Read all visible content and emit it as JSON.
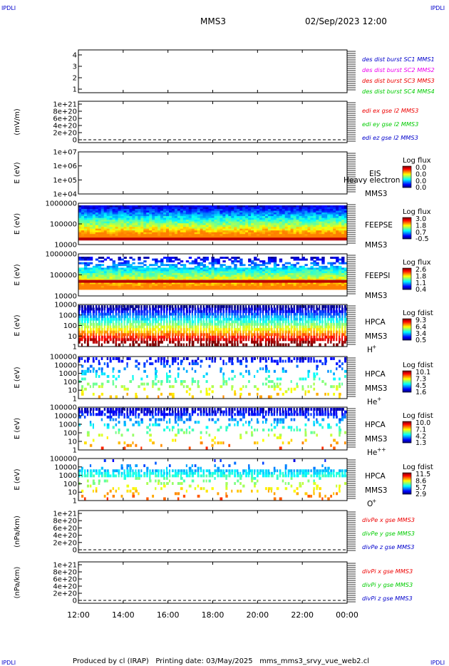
{
  "corner_label": "IPDLI",
  "header": {
    "title": "MMS3",
    "datetime": "02/Sep/2023 12:00"
  },
  "footer": {
    "text": "Produced by cl (IRAP)   Printing date: 03/May/2025   mms_mms3_srvy_vue_web2.cl"
  },
  "colors": {
    "red": "#ee0000",
    "green": "#00cc00",
    "blue": "#0000cc",
    "magenta": "#ee00ee",
    "sheath_red": "#bb0000"
  },
  "x_axis": {
    "ticks": [
      "12:00",
      "14:00",
      "16:00",
      "18:00",
      "20:00",
      "22:00",
      "00:00"
    ]
  },
  "panels": [
    {
      "id": "p1",
      "type": "line",
      "ylabel": "",
      "yticks": [
        "4",
        "3",
        "2",
        "1"
      ],
      "legend": [
        {
          "text": "des dist burst SC1 MMS1",
          "color": "#0000cc"
        },
        {
          "text": "des dist burst SC2 MMS2",
          "color": "#ee00ee"
        },
        {
          "text": "des dist burst SC3 MMS3",
          "color": "#ee0000"
        },
        {
          "text": "des dist burst SC4 MMS4",
          "color": "#00cc00"
        }
      ]
    },
    {
      "id": "p2",
      "type": "line",
      "ylabel": "(mV/m)",
      "yticks": [
        "1e+21",
        "8e+20",
        "6e+20",
        "4e+20",
        "2e+20",
        "0"
      ],
      "legend": [
        {
          "text": "edi ex gse l2 MMS3",
          "color": "#ee0000"
        },
        {
          "text": "edi ey gse l2 MMS3",
          "color": "#00cc00"
        },
        {
          "text": "edi ez gse l2 MMS3",
          "color": "#0000cc"
        }
      ]
    },
    {
      "id": "p3",
      "type": "spectrogram",
      "ylabel": "E (eV)",
      "yticks": [
        "1e+07",
        "1e+06",
        "1e+05",
        "1e+04"
      ],
      "instrument": [
        "EIS",
        "MMS3"
      ],
      "overlay_text": "Heavy electron to",
      "scale_title": "Log flux",
      "scale_values": [
        "0.0",
        "0.0",
        "0.0",
        "0.0"
      ]
    },
    {
      "id": "p4",
      "type": "spectrogram",
      "ylabel": "E (eV)",
      "yticks": [
        "1000000",
        "100000",
        "10000"
      ],
      "instrument": [
        "FEEPSE",
        "MMS3"
      ],
      "scale_title": "Log flux",
      "scale_values": [
        "3.0",
        "1.8",
        "0.7",
        "-0.5"
      ]
    },
    {
      "id": "p5",
      "type": "spectrogram",
      "ylabel": "E (eV)",
      "yticks": [
        "1000000",
        "100000",
        "10000"
      ],
      "instrument": [
        "FEEPSI",
        "MMS3"
      ],
      "scale_title": "Log flux",
      "scale_values": [
        "2.6",
        "1.8",
        "1.1",
        "0.4"
      ]
    },
    {
      "id": "p6",
      "type": "spectrogram",
      "ylabel": "E (eV)",
      "yticks": [
        "10000",
        "1000",
        "100",
        "10",
        "1"
      ],
      "instrument": [
        "HPCA",
        "MMS3"
      ],
      "species": "H",
      "species_sup": "+",
      "scale_title": "Log fdist",
      "scale_values": [
        "9.3",
        "6.4",
        "3.4",
        "0.5"
      ]
    },
    {
      "id": "p7",
      "type": "spectrogram",
      "ylabel": "E (eV)",
      "yticks": [
        "100000",
        "10000",
        "1000",
        "100",
        "10",
        "1"
      ],
      "instrument": [
        "HPCA",
        "MMS3"
      ],
      "species": "He",
      "species_sup": "+",
      "scale_title": "Log fdist",
      "scale_values": [
        "10.1",
        "7.3",
        "4.5",
        "1.6"
      ]
    },
    {
      "id": "p8",
      "type": "spectrogram",
      "ylabel": "E (eV)",
      "yticks": [
        "100000",
        "10000",
        "1000",
        "100",
        "10",
        "1"
      ],
      "instrument": [
        "HPCA",
        "MMS3"
      ],
      "species": "He",
      "species_sup": "++",
      "scale_title": "Log fdist",
      "scale_values": [
        "10.0",
        "7.1",
        "4.2",
        "1.3"
      ]
    },
    {
      "id": "p9",
      "type": "spectrogram",
      "ylabel": "E (eV)",
      "yticks": [
        "100000",
        "10000",
        "1000",
        "100",
        "10",
        "1"
      ],
      "instrument": [
        "HPCA",
        "MMS3"
      ],
      "species": "O",
      "species_sup": "+",
      "scale_title": "Log fdist",
      "scale_values": [
        "11.5",
        "8.6",
        "5.7",
        "2.9"
      ]
    },
    {
      "id": "p10",
      "type": "line",
      "ylabel": "(nPa/km)",
      "yticks": [
        "1e+21",
        "8e+20",
        "6e+20",
        "4e+20",
        "2e+20",
        "0"
      ],
      "legend": [
        {
          "text": "divPe x gse MMS3",
          "color": "#ee0000"
        },
        {
          "text": "divPe y gse MMS3",
          "color": "#00cc00"
        },
        {
          "text": "divPe z gse MMS3",
          "color": "#0000cc"
        }
      ]
    },
    {
      "id": "p11",
      "type": "line",
      "ylabel": "(nPa/km)",
      "yticks": [
        "1e+21",
        "8e+20",
        "6e+20",
        "4e+20",
        "2e+20",
        "0"
      ],
      "legend": [
        {
          "text": "divPi x gse MMS3",
          "color": "#ee0000"
        },
        {
          "text": "divPi y gse MMS3",
          "color": "#00cc00"
        },
        {
          "text": "divPi z gse MMS3",
          "color": "#0000cc"
        }
      ]
    }
  ],
  "chart_data": {
    "type": "heatmap",
    "title": "MMS3",
    "x": {
      "range": [
        "02/Sep/2023 12:00",
        "03/Sep/2023 00:00"
      ],
      "ticks": [
        "12:00",
        "14:00",
        "16:00",
        "18:00",
        "20:00",
        "22:00",
        "00:00"
      ]
    },
    "series": [
      {
        "name": "EIS",
        "ylim": [
          10000,
          10000000
        ],
        "yscale": "log",
        "data": "none"
      },
      {
        "name": "FEEPSE",
        "ylim": [
          10000,
          1000000
        ],
        "yscale": "log",
        "color_range": [
          -0.5,
          3.0
        ]
      },
      {
        "name": "FEEPSI",
        "ylim": [
          10000,
          1000000
        ],
        "yscale": "log",
        "color_range": [
          0.4,
          2.6
        ]
      },
      {
        "name": "HPCA H+",
        "ylim": [
          1,
          10000
        ],
        "yscale": "log",
        "color_range": [
          0.5,
          9.3
        ]
      },
      {
        "name": "HPCA He+",
        "ylim": [
          1,
          100000
        ],
        "yscale": "log",
        "color_range": [
          1.6,
          10.1
        ]
      },
      {
        "name": "HPCA He++",
        "ylim": [
          1,
          100000
        ],
        "yscale": "log",
        "color_range": [
          1.3,
          10.0
        ]
      },
      {
        "name": "HPCA O+",
        "ylim": [
          1,
          100000
        ],
        "yscale": "log",
        "color_range": [
          2.9,
          11.5
        ]
      }
    ],
    "line_panels": [
      {
        "ylabel": "(mV/m)",
        "ylim": [
          0,
          1e+21
        ],
        "values": "zero line only"
      },
      {
        "ylabel": "(nPa/km)",
        "ylim": [
          0,
          1e+21
        ],
        "values": "zero line only"
      },
      {
        "ylabel": "(nPa/km)",
        "ylim": [
          0,
          1e+21
        ],
        "values": "zero line only"
      }
    ]
  }
}
